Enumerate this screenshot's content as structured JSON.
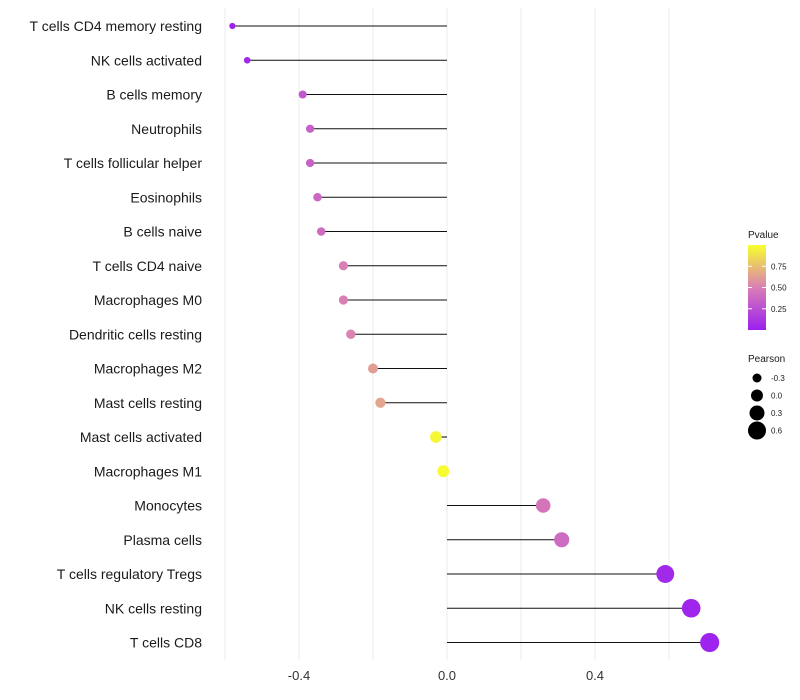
{
  "chart_data": {
    "type": "lollipop",
    "title": "",
    "xlabel": "",
    "ylabel": "",
    "xlim": [
      -0.6,
      0.72
    ],
    "x_ticks": [
      -0.4,
      0.0,
      0.4
    ],
    "x_tick_labels": [
      "-0.4",
      "0.0",
      "0.4"
    ],
    "grid": true,
    "categories": [
      "T cells CD4 memory resting",
      "NK cells activated",
      "B cells memory",
      "Neutrophils",
      "T cells follicular helper",
      "Eosinophils",
      "B cells naive",
      "T cells CD4 naive",
      "Macrophages M0",
      "Dendritic cells resting",
      "Macrophages M2",
      "Mast cells resting",
      "Mast cells activated",
      "Macrophages M1",
      "Monocytes",
      "Plasma cells",
      "T cells regulatory  Tregs",
      "NK cells resting",
      "T cells CD8"
    ],
    "pearson": [
      -0.58,
      -0.54,
      -0.39,
      -0.37,
      -0.37,
      -0.35,
      -0.34,
      -0.28,
      -0.28,
      -0.26,
      -0.2,
      -0.18,
      -0.03,
      -0.01,
      0.26,
      0.31,
      0.59,
      0.66,
      0.71
    ],
    "pvalue": [
      0.02,
      0.05,
      0.3,
      0.35,
      0.35,
      0.38,
      0.4,
      0.5,
      0.5,
      0.52,
      0.62,
      0.65,
      0.97,
      0.99,
      0.45,
      0.4,
      0.05,
      0.03,
      0.02
    ],
    "legend": {
      "color": {
        "title": "Pvalue",
        "ticks": [
          "0.75",
          "0.50",
          "0.25"
        ],
        "tick_values": [
          0.75,
          0.5,
          0.25
        ],
        "range": [
          0.0,
          1.0
        ],
        "low_color": "#9b1ff0",
        "mid_color": "#da7fb5",
        "high_color": "#f7ff2e"
      },
      "size": {
        "title": "Pearson",
        "labels": [
          "-0.3",
          "0.0",
          "0.3",
          "0.6"
        ],
        "values": [
          -0.3,
          0.0,
          0.3,
          0.6
        ]
      },
      "position": "right"
    }
  }
}
